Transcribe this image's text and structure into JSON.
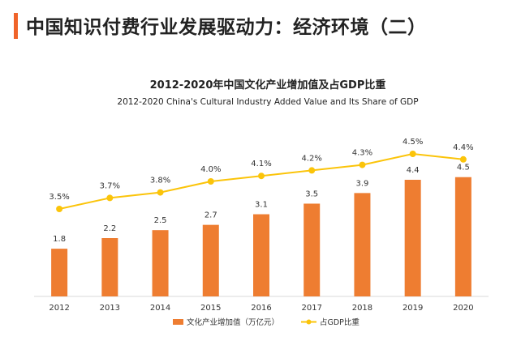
{
  "slide": {
    "title": "中国知识付费行业发展驱动力：经济环境（二）"
  },
  "colors": {
    "accent": "#f0642a",
    "bar": "#ee7d31",
    "line": "#fbc40a",
    "axis": "#d9d9d9"
  },
  "chart_data": {
    "type": "bar+line",
    "title": "2012-2020年中国文化产业增加值及占GDP比重",
    "subtitle": "2012-2020 China's Cultural Industry Added Value and Its Share of GDP",
    "categories": [
      "2012",
      "2013",
      "2014",
      "2015",
      "2016",
      "2017",
      "2018",
      "2019",
      "2020"
    ],
    "series": [
      {
        "name": "文化产业增加值（万亿元）",
        "kind": "bar",
        "axis": "left",
        "values": [
          1.8,
          2.2,
          2.5,
          2.7,
          3.1,
          3.5,
          3.9,
          4.4,
          4.5
        ],
        "labels": [
          "1.8",
          "2.2",
          "2.5",
          "2.7",
          "3.1",
          "3.5",
          "3.9",
          "4.4",
          "4.5"
        ]
      },
      {
        "name": "占GDP比重",
        "kind": "line",
        "axis": "right",
        "values": [
          3.5,
          3.7,
          3.8,
          4.0,
          4.1,
          4.2,
          4.3,
          4.5,
          4.4
        ],
        "labels": [
          "3.5%",
          "3.7%",
          "3.8%",
          "4.0%",
          "4.1%",
          "4.2%",
          "4.3%",
          "4.5%",
          "4.4%"
        ]
      }
    ],
    "ylim_bars": [
      0,
      6.6
    ],
    "ylim_line": [
      2.5,
      4.5
    ],
    "grid": false,
    "legend": "bottom-center"
  }
}
